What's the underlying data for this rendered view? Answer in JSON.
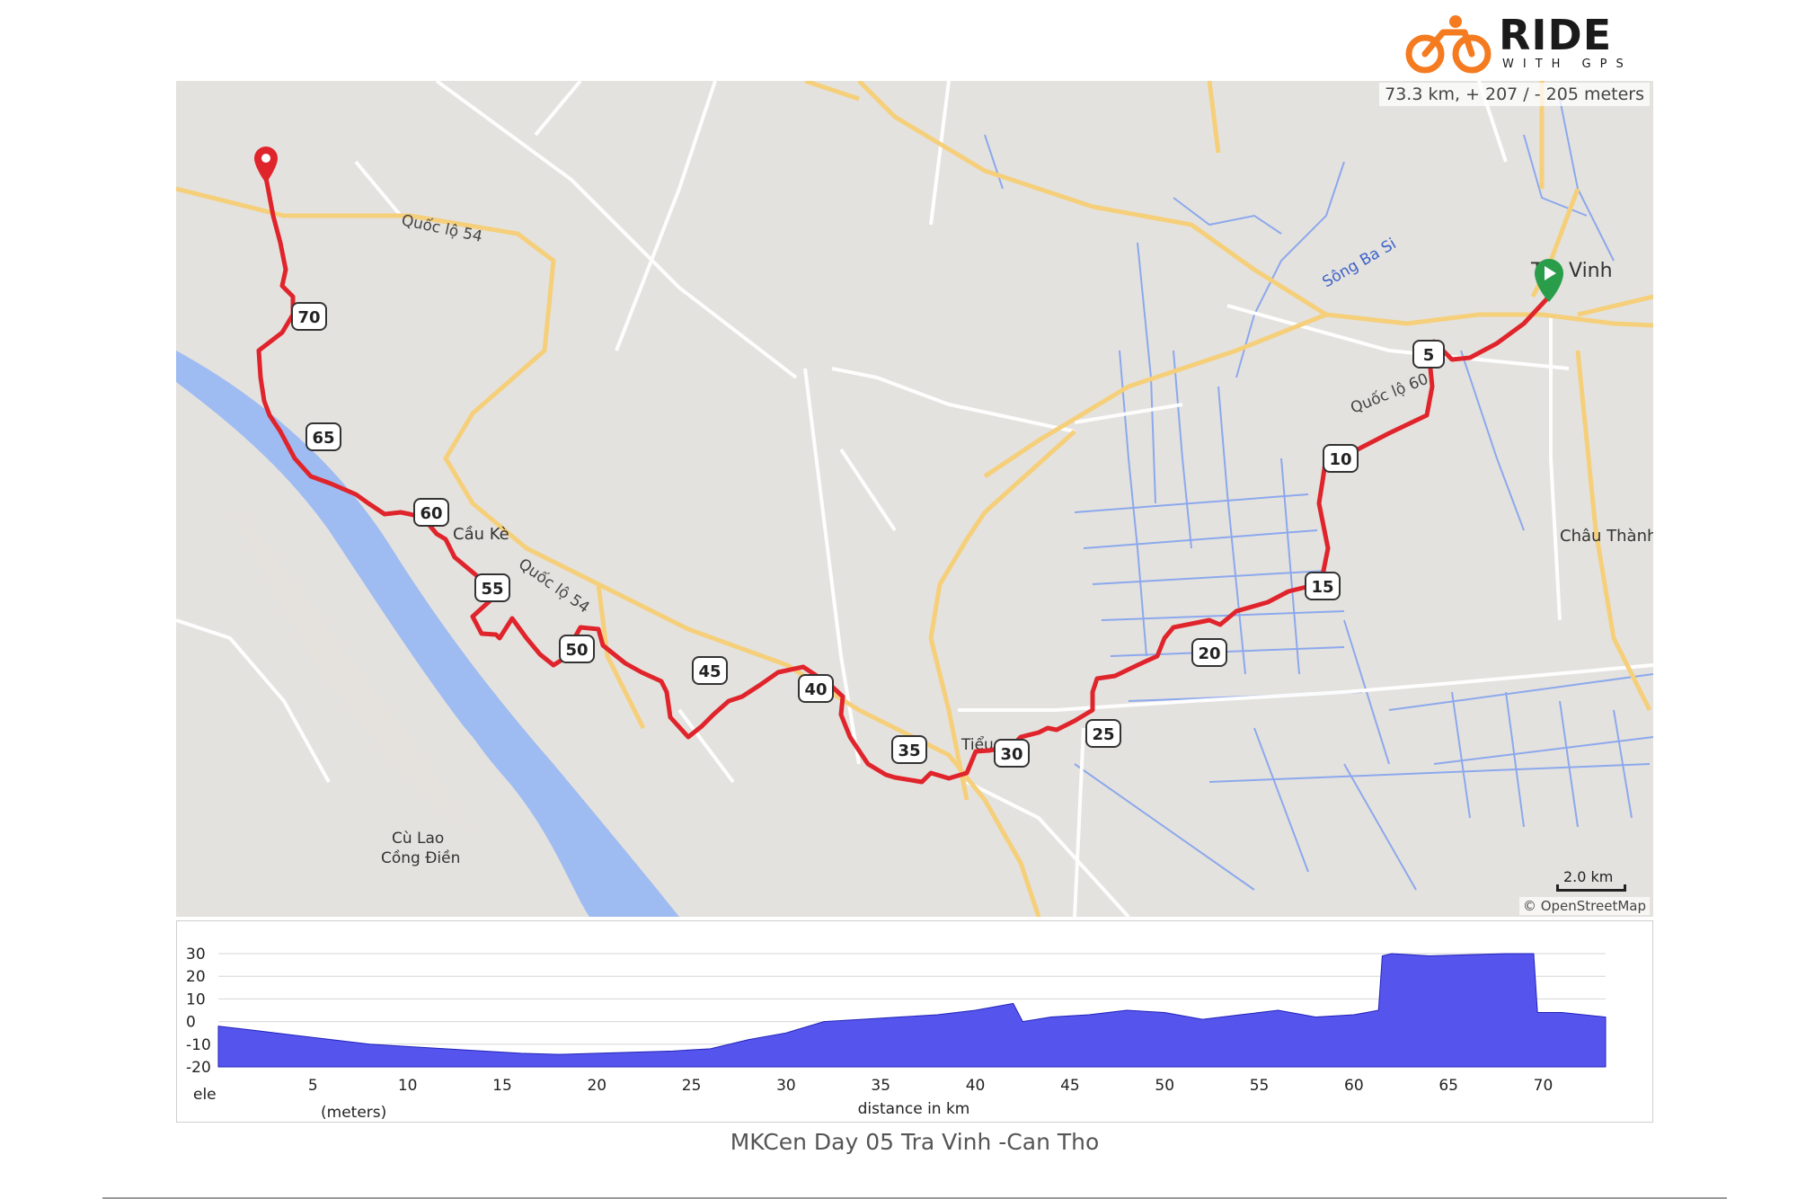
{
  "logo": {
    "word": "RIDE",
    "sub": "WITH GPS",
    "accent": "#f47b20"
  },
  "map": {
    "stats": "73.3 km, + 207 / - 205 meters",
    "attribution": "© OpenStreetMap",
    "scale_label": "2.0 km",
    "places": {
      "tra_vinh": "Vinh",
      "tra_vinh_prefix": "Trà",
      "chau_thanh": "Châu Thành",
      "cau_ke": "Cầu Kè",
      "tieu_can": "Tiểu",
      "cu_lao_1": "Cù Lao",
      "cu_lao_2": "Cồng Điền"
    },
    "roads": {
      "ql54_a": "Quốc lộ 54",
      "ql54_b": "Quốc lộ 54",
      "ql54_c": "Quốc lộ 60",
      "song": "Sông Ba Si"
    },
    "km_markers": [
      "5",
      "10",
      "15",
      "20",
      "25",
      "30",
      "35",
      "40",
      "45",
      "50",
      "55",
      "60",
      "65",
      "70"
    ],
    "route_color": "#e0242c",
    "start_color": "#2a9d4b",
    "end_color": "#e0242c"
  },
  "chart_data": {
    "type": "area",
    "xlabel": "distance in km",
    "ylabel": "ele",
    "yunit": "(meters)",
    "xlim": [
      0,
      73.3
    ],
    "ylim": [
      -20,
      30
    ],
    "xticks": [
      5,
      10,
      15,
      20,
      25,
      30,
      35,
      40,
      45,
      50,
      55,
      60,
      65,
      70
    ],
    "yticks": [
      30,
      20,
      10,
      0,
      -10,
      -20
    ],
    "grid": true,
    "color": "#5555ee",
    "x": [
      0,
      2,
      4,
      6,
      8,
      10,
      12,
      14,
      16,
      18,
      20,
      22,
      24,
      26,
      28,
      30,
      32,
      34,
      36,
      38,
      40,
      42,
      42.5,
      44,
      46,
      48,
      50,
      52,
      54,
      56,
      58,
      60,
      61.3,
      61.5,
      62,
      64,
      66,
      68,
      69.5,
      69.7,
      71,
      73.3
    ],
    "y": [
      -2,
      -4,
      -6,
      -8,
      -10,
      -11,
      -12,
      -13,
      -14,
      -14.5,
      -14,
      -13.5,
      -13,
      -12,
      -8,
      -5,
      0,
      1,
      2,
      3,
      5,
      8,
      0,
      2,
      3,
      5,
      4,
      1,
      3,
      5,
      2,
      3,
      5,
      29,
      30,
      29,
      29.5,
      30,
      30,
      4,
      4,
      2
    ]
  },
  "caption": "MKCen Day 05 Tra Vinh -Can Tho"
}
